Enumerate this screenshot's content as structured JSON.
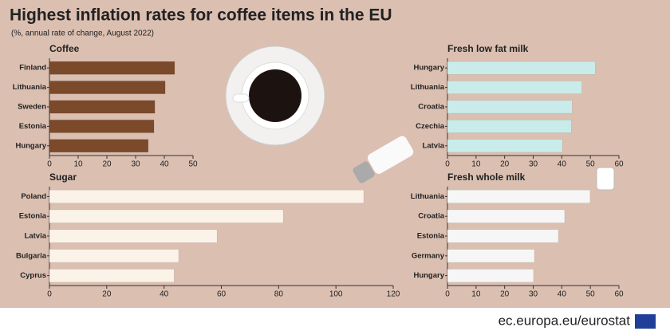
{
  "title": "Highest inflation rates for coffee items in the EU",
  "subtitle": "(%, annual rate of change, August 2022)",
  "source": "ec.europa.eu/eurostat",
  "chart_data": [
    {
      "type": "hbar",
      "title": "Coffee",
      "categories": [
        "Finland",
        "Lithuania",
        "Sweden",
        "Estonia",
        "Hungary"
      ],
      "values": [
        43.6,
        40.3,
        36.7,
        36.4,
        34.4
      ],
      "color": "#7b4a2b",
      "xlim": [
        0,
        50
      ],
      "xticks": [
        0,
        10,
        20,
        30,
        40,
        50
      ]
    },
    {
      "type": "hbar",
      "title": "Fresh low fat milk",
      "categories": [
        "Hungary",
        "Lithuania",
        "Croatia",
        "Czechia",
        "Latvia"
      ],
      "values": [
        51.7,
        47,
        43.6,
        43.3,
        40.2
      ],
      "color": "#c9ecea",
      "xlim": [
        0,
        60
      ],
      "xticks": [
        0,
        10,
        20,
        30,
        40,
        50,
        60
      ]
    },
    {
      "type": "hbar",
      "title": "Sugar",
      "categories": [
        "Poland",
        "Estonia",
        "Latvia",
        "Bulgaria",
        "Cyprus"
      ],
      "values": [
        109.7,
        81.6,
        58.5,
        45.1,
        43.5
      ],
      "color": "#fbf2e8",
      "xlim": [
        0,
        120
      ],
      "xticks": [
        0,
        20,
        40,
        60,
        80,
        100,
        120
      ]
    },
    {
      "type": "hbar",
      "title": "Fresh whole milk",
      "categories": [
        "Lithuania",
        "Croatia",
        "Estonia",
        "Germany",
        "Hungary"
      ],
      "values": [
        49.9,
        41,
        38.8,
        30.4,
        30.1
      ],
      "color": "#f6f6f6",
      "xlim": [
        0,
        60
      ],
      "xticks": [
        0,
        10,
        20,
        30,
        40,
        50,
        60
      ]
    }
  ]
}
